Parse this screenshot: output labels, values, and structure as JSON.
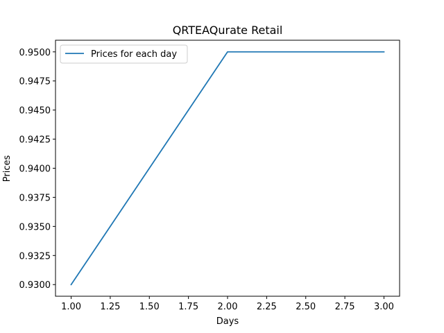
{
  "chart_data": {
    "type": "line",
    "title": "QRTEAQurate Retail",
    "xlabel": "Days",
    "ylabel": "Prices",
    "xlim": [
      0.9,
      3.1
    ],
    "ylim": [
      0.929,
      0.951
    ],
    "x_ticks": [
      1.0,
      1.25,
      1.5,
      1.75,
      2.0,
      2.25,
      2.5,
      2.75,
      3.0
    ],
    "x_tick_labels": [
      "1.00",
      "1.25",
      "1.50",
      "1.75",
      "2.00",
      "2.25",
      "2.50",
      "2.75",
      "3.00"
    ],
    "y_ticks": [
      0.93,
      0.9325,
      0.935,
      0.9375,
      0.94,
      0.9425,
      0.945,
      0.9475,
      0.95
    ],
    "y_tick_labels": [
      "0.9300",
      "0.9325",
      "0.9350",
      "0.9375",
      "0.9400",
      "0.9425",
      "0.9450",
      "0.9475",
      "0.9500"
    ],
    "grid": false,
    "legend_position": "upper-left",
    "series": [
      {
        "name": "Prices for each day",
        "color": "#1f77b4",
        "x": [
          1.0,
          2.0,
          3.0
        ],
        "y": [
          0.93,
          0.95,
          0.95
        ]
      }
    ]
  }
}
